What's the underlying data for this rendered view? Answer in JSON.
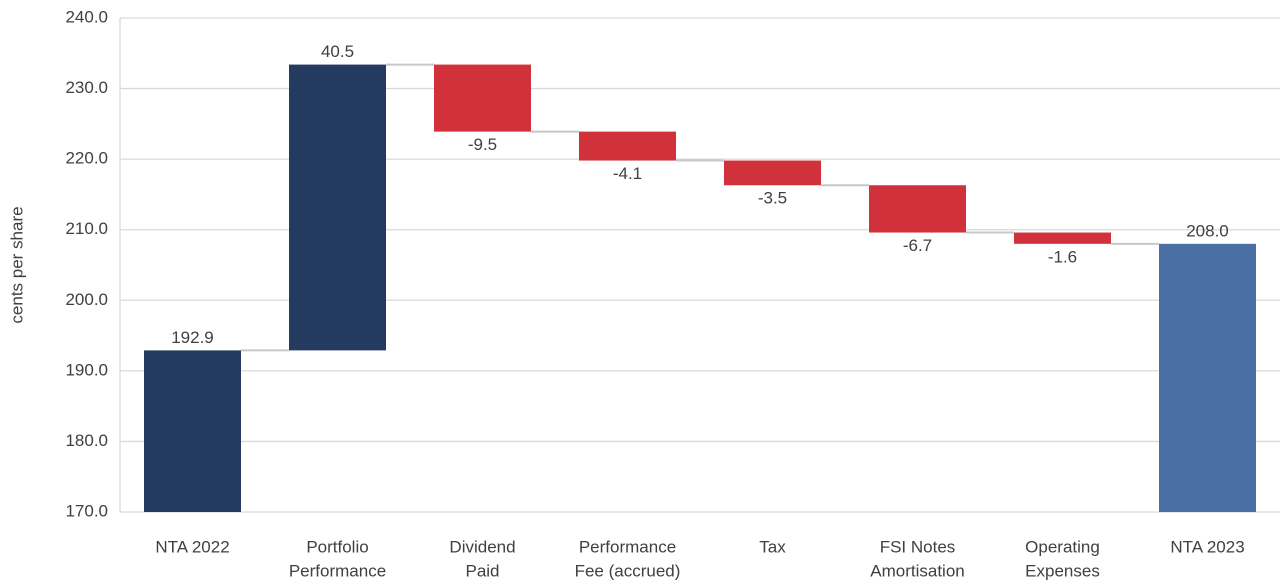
{
  "chart_data": {
    "type": "waterfall",
    "y_label": "cents per share",
    "categories": [
      [
        "NTA 2022"
      ],
      [
        "Portfolio",
        "Performance"
      ],
      [
        "Dividend",
        "Paid"
      ],
      [
        "Performance",
        "Fee (accrued)"
      ],
      [
        "Tax"
      ],
      [
        "FSI Notes",
        "Amortisation"
      ],
      [
        "Operating",
        "Expenses"
      ],
      [
        "NTA 2023"
      ]
    ],
    "values": [
      192.9,
      40.5,
      -9.5,
      -4.1,
      -3.5,
      -6.7,
      -1.6,
      208.0
    ],
    "value_labels": [
      "192.9",
      "40.5",
      "-9.5",
      "-4.1",
      "-3.5",
      "-6.7",
      "-1.6",
      "208.0"
    ],
    "colors": [
      "#243a5e",
      "#243a5e",
      "#d0313a",
      "#d0313a",
      "#d0313a",
      "#d0313a",
      "#d0313a",
      "#4a6fa5"
    ],
    "ylim": [
      170,
      240
    ],
    "yticks": [
      {
        "value": 170,
        "label": "170.0"
      },
      {
        "value": 180,
        "label": "180.0"
      },
      {
        "value": 190,
        "label": "190.0"
      },
      {
        "value": 200,
        "label": "200.0"
      },
      {
        "value": 210,
        "label": "210.0"
      },
      {
        "value": 220,
        "label": "220.0"
      },
      {
        "value": 230,
        "label": "230.0"
      },
      {
        "value": 240,
        "label": "240.0"
      }
    ],
    "grid": true
  }
}
